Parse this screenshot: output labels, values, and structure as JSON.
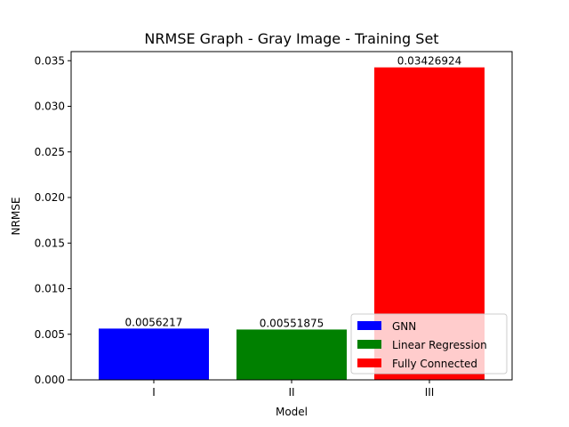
{
  "chart_data": {
    "type": "bar",
    "title": "NRMSE Graph - Gray Image - Training Set",
    "xlabel": "Model",
    "ylabel": "NRMSE",
    "categories": [
      "I",
      "II",
      "III"
    ],
    "values": [
      0.0056217,
      0.00551875,
      0.03426924
    ],
    "data_labels": [
      "0.0056217",
      "0.00551875",
      "0.03426924"
    ],
    "bar_colors": [
      "#0000ff",
      "#008000",
      "#ff0000"
    ],
    "yticks": [
      0.0,
      0.005,
      0.01,
      0.015,
      0.02,
      0.025,
      0.03,
      0.035
    ],
    "ytick_labels": [
      "0.000",
      "0.005",
      "0.010",
      "0.015",
      "0.020",
      "0.025",
      "0.030",
      "0.035"
    ],
    "ylim": [
      0,
      0.036
    ],
    "grid": false,
    "legend": {
      "position": "bottom-right",
      "entries": [
        {
          "label": "GNN",
          "color": "#0000ff"
        },
        {
          "label": "Linear Regression",
          "color": "#008000"
        },
        {
          "label": "Fully Connected",
          "color": "#ff0000"
        }
      ]
    }
  }
}
